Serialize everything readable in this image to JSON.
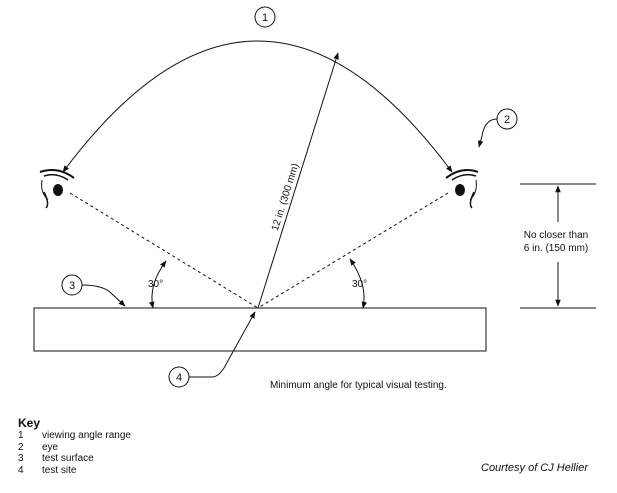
{
  "callouts": [
    "1",
    "2",
    "3",
    "4"
  ],
  "angles": {
    "left": "30°",
    "right": "30°"
  },
  "distance_label": "12 in. (300 mm)",
  "min_distance": {
    "line1": "No closer than",
    "line2": "6 in. (150 mm)"
  },
  "caption": "Minimum angle for typical visual testing.",
  "key": {
    "title": "Key",
    "items": [
      {
        "num": "1",
        "label": "viewing angle range"
      },
      {
        "num": "2",
        "label": "eye"
      },
      {
        "num": "3",
        "label": "test surface"
      },
      {
        "num": "4",
        "label": "test site"
      }
    ]
  },
  "credit": "Courtesy of CJ Hellier"
}
